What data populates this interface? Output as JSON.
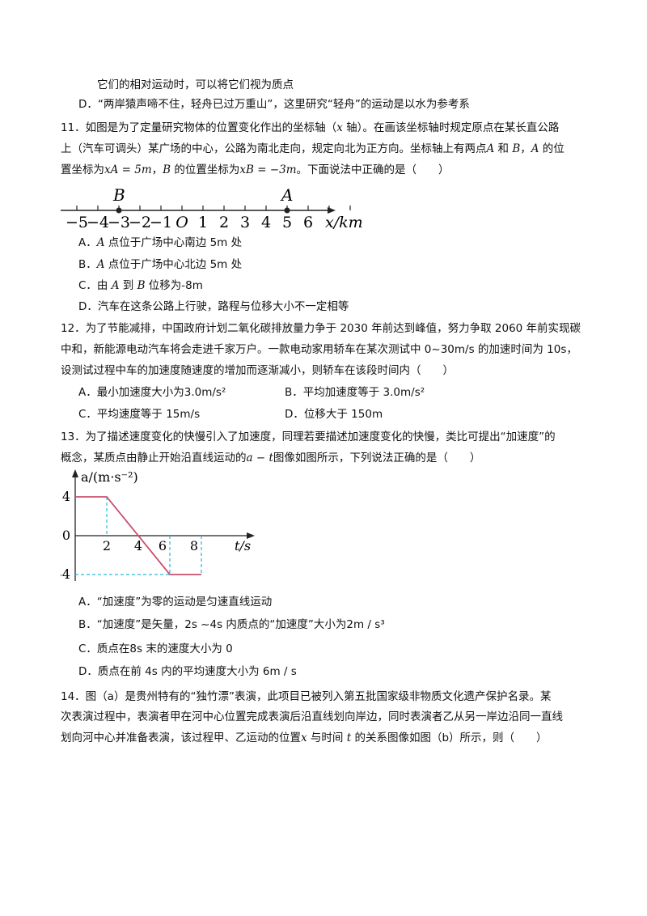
{
  "q10": {
    "tail": "它们的相对运动时，可以将它们视为质点",
    "optD": "D．“两岸猿声啼不住，轻舟已过万重山”，这里研究“轻舟”的运动是以水为参考系"
  },
  "q11": {
    "l1a": "11．如图是为了定量研究物体的位置变化作出的坐标轴（",
    "l1x": "x",
    "l1b": " 轴）。在画该坐标轴时规定原点在某长直公路",
    "l2": "上（汽车可调头）某广场的中心，公路为南北走向，规定向北为正方向。坐标轴上有两点",
    "l2A": "A",
    "l2and": " 和 ",
    "l2B": "B",
    "l2c": "，",
    "l2A2": "A",
    "l2d": " 的位",
    "l3a": "置坐标为",
    "xA": "xA = 5m",
    "l3b": "，",
    "l3B": "B",
    "l3c": " 的位置坐标为",
    "xB": "xB = −3m",
    "l3d": "。下面说法中正确的是（　　）",
    "axis": {
      "label_B": "B",
      "label_A": "A",
      "ticks": [
        "−5",
        "−4",
        "−3",
        "−2",
        "−1",
        "O",
        "1",
        "2",
        "3",
        "4",
        "5",
        "6"
      ],
      "unit": "x/km"
    },
    "optA_a": "A．",
    "optA_A": "A",
    "optA_b": " 点位于广场中心南边 5m 处",
    "optB_a": "B．",
    "optB_A": "A",
    "optB_b": " 点位于广场中心北边 5m 处",
    "optC_a": "C．由 ",
    "optC_A": "A",
    "optC_b": " 到 ",
    "optC_B": "B",
    "optC_c": " 位移为-8m",
    "optD": "D．汽车在这条公路上行驶，路程与位移大小不一定相等"
  },
  "q12": {
    "l1": "12．为了节能减排，中国政府计划二氧化碳排放量力争于 2030 年前达到峰值，努力争取 2060 年前实现碳",
    "l2": "中和，新能源电动汽车将会走进千家万户。一款电动家用轿车在某次测试中 0~30m/s 的加速时间为 10s，",
    "l3": "设测试过程中车的加速度随速度的增加而逐渐减小，则轿车在该段时间内（　　）",
    "optA": "A．最小加速度大小为3.0m/s²",
    "optB": "B．平均加速度等于 3.0m/s²",
    "optC": "C．平均速度等于 15m/s",
    "optD": "D．位移大于 150m"
  },
  "q13": {
    "l1": "13．为了描述速度变化的快慢引入了加速度，同理若要描述加速度变化的快慢，类比可提出“加速度”的",
    "l2a": "概念，某质点由静止开始沿直线运动的",
    "l2at": "a − t",
    "l2b": "图像如图所示，下列说法正确的是（　　）",
    "graph": {
      "ylabel": "a/(m·s⁻²)",
      "xlabel": "t/s",
      "y_ticks": [
        "4",
        "0",
        "-4"
      ],
      "x_ticks": [
        "2",
        "4",
        "6",
        "8"
      ]
    },
    "optA": "A．“加速度”为零的运动是匀速直线运动",
    "optB": "B．“加速度”是矢量，2s ~4s 内质点的“加速度”大小为2m / s³",
    "optC": "C．质点在8s 末的速度大小为 0",
    "optD": "D．质点在前 4s 内的平均速度大小为 6m / s"
  },
  "q14": {
    "l1": "14．图（a）是贵州特有的“独竹漂”表演，此项目已被列入第五批国家级非物质文化遗产保护名录。某",
    "l2": "次表演过程中，表演者甲在河中心位置完成表演后沿直线划向岸边，同时表演者乙从另一岸边沿同一直线",
    "l3a": "划向河中心并准备表演，该过程甲、乙运动的位置",
    "l3x": "x",
    "l3b": " 与时间 ",
    "l3t": "t",
    "l3c": " 的关系图像如图（b）所示，则（　　）"
  },
  "chart_data": {
    "type": "line",
    "xlabel": "t/s",
    "ylabel": "a/(m·s⁻²)",
    "x": [
      0,
      2,
      6,
      8
    ],
    "y": [
      4,
      4,
      -4,
      -4
    ],
    "xlim": [
      0,
      9
    ],
    "ylim": [
      -4,
      4
    ]
  }
}
